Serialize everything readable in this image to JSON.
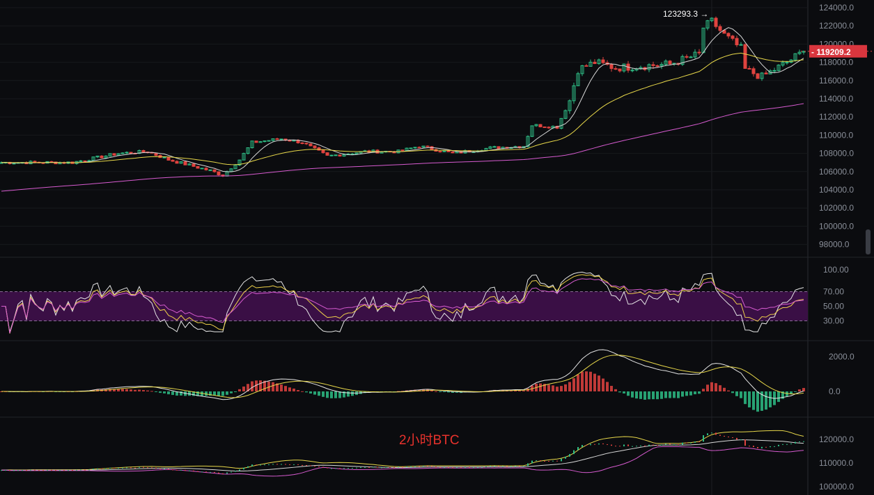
{
  "chart_data": {
    "type": "candlestick",
    "title": "",
    "symbol_label": "2小时BTC",
    "high_annotation": "123293.3",
    "last_price": "119209.2",
    "price_axis": {
      "ylim": [
        98000,
        124000
      ],
      "ticks": [
        "124000.0",
        "122000.0",
        "120000.0",
        "118000.0",
        "116000.0",
        "114000.0",
        "112000.0",
        "110000.0",
        "108000.0",
        "106000.0",
        "104000.0",
        "102000.0",
        "100000.0",
        "98000.0"
      ]
    },
    "close_keypoints": [
      [
        0,
        107000
      ],
      [
        17,
        107000
      ],
      [
        28,
        108000
      ],
      [
        35,
        108200
      ],
      [
        40,
        107300
      ],
      [
        50,
        106100
      ],
      [
        53,
        105600
      ],
      [
        57,
        107300
      ],
      [
        60,
        109200
      ],
      [
        67,
        109600
      ],
      [
        72,
        109200
      ],
      [
        78,
        107700
      ],
      [
        87,
        108200
      ],
      [
        95,
        108200
      ],
      [
        100,
        108800
      ],
      [
        108,
        108000
      ],
      [
        117,
        108600
      ],
      [
        125,
        108800
      ],
      [
        127,
        111100
      ],
      [
        133,
        110900
      ],
      [
        136,
        113800
      ],
      [
        138,
        117200
      ],
      [
        142,
        118000
      ],
      [
        147,
        117400
      ],
      [
        153,
        117600
      ],
      [
        160,
        117800
      ],
      [
        167,
        118900
      ],
      [
        168,
        121800
      ],
      [
        170,
        122500
      ],
      [
        173,
        121000
      ],
      [
        177,
        119500
      ],
      [
        178,
        117200
      ],
      [
        182,
        116400
      ],
      [
        185,
        117200
      ],
      [
        188,
        118000
      ],
      [
        192,
        119209
      ]
    ],
    "moving_averages": [
      {
        "period": 7,
        "color": "#d9d9d9"
      },
      {
        "period": 25,
        "color": "#e8d84a"
      },
      {
        "period": 99,
        "color": "#d75bd0"
      }
    ],
    "rsi": {
      "levels": [
        30,
        50,
        70
      ],
      "ticks": [
        "100.00",
        "70.00",
        "50.00",
        "30.00"
      ],
      "band_color": "#3a0f45"
    },
    "macd": {
      "ticks": [
        "2000.0",
        "0.0"
      ]
    },
    "lower_panel": {
      "ticks": [
        "120000.0",
        "110000.0",
        "100000.0"
      ]
    },
    "colors": {
      "up": "#2ebd85",
      "down": "#e0433f",
      "background": "#0b0c0f"
    }
  }
}
